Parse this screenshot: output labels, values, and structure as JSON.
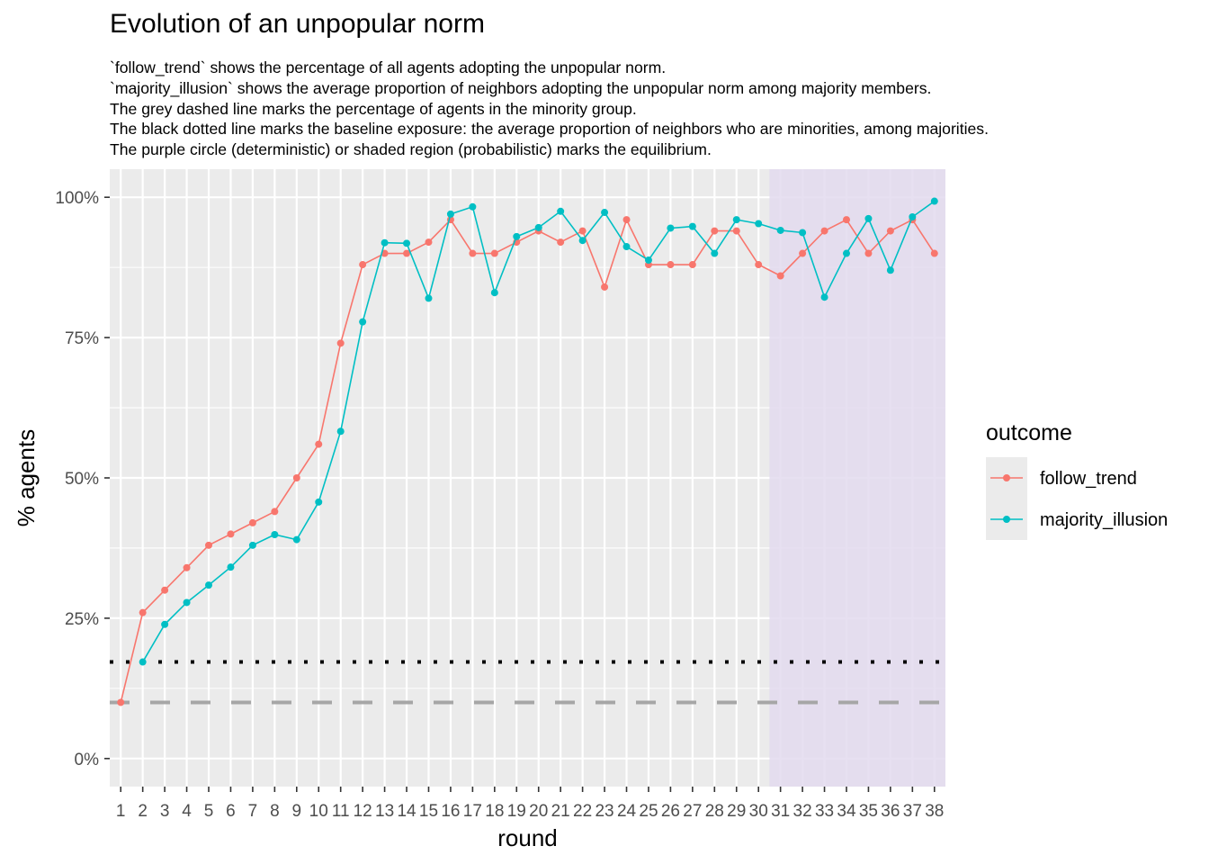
{
  "chart_data": {
    "type": "line",
    "title": "Evolution of an unpopular norm",
    "subtitle": [
      "`follow_trend` shows the percentage of all agents adopting the unpopular norm.",
      "`majority_illusion` shows the average proportion of neighbors adopting the unpopular norm among majority members.",
      "The grey dashed line marks the percentage of agents in the minority group.",
      "The black dotted line marks the baseline exposure: the average proportion of neighbors who are minorities, among majorities.",
      "The purple circle (deterministic) or shaded region (probabilistic) marks the equilibrium."
    ],
    "xlabel": "round",
    "ylabel": "% agents",
    "x": [
      1,
      2,
      3,
      4,
      5,
      6,
      7,
      8,
      9,
      10,
      11,
      12,
      13,
      14,
      15,
      16,
      17,
      18,
      19,
      20,
      21,
      22,
      23,
      24,
      25,
      26,
      27,
      28,
      29,
      30,
      31,
      32,
      33,
      34,
      35,
      36,
      37,
      38
    ],
    "xlim": [
      0.5,
      38.5
    ],
    "ylim": [
      -0.05,
      1.05
    ],
    "yticks": [
      0,
      0.25,
      0.5,
      0.75,
      1.0
    ],
    "ytick_labels": [
      "0%",
      "25%",
      "50%",
      "75%",
      "100%"
    ],
    "series": [
      {
        "name": "follow_trend",
        "color": "#F8766D",
        "values": [
          0.1,
          0.26,
          0.3,
          0.34,
          0.38,
          0.4,
          0.42,
          0.44,
          0.5,
          0.56,
          0.74,
          0.88,
          0.9,
          0.9,
          0.92,
          0.96,
          0.9,
          0.9,
          0.92,
          0.94,
          0.92,
          0.94,
          0.84,
          0.96,
          0.88,
          0.88,
          0.88,
          0.94,
          0.94,
          0.88,
          0.86,
          0.9,
          0.94,
          0.96,
          0.9,
          0.94,
          0.96,
          0.9
        ]
      },
      {
        "name": "majority_illusion",
        "color": "#00BFC4",
        "values": [
          null,
          0.172,
          0.239,
          0.278,
          0.309,
          0.341,
          0.38,
          0.399,
          0.39,
          0.457,
          0.583,
          0.778,
          0.919,
          0.918,
          0.82,
          0.97,
          0.983,
          0.83,
          0.93,
          0.946,
          0.975,
          0.923,
          0.973,
          0.912,
          0.888,
          0.945,
          0.948,
          0.9,
          0.96,
          0.953,
          0.941,
          0.937,
          0.822,
          0.9,
          0.962,
          0.87,
          0.965,
          0.993
        ]
      }
    ],
    "reference_lines": [
      {
        "style": "dotted",
        "color": "#000000",
        "value": 0.172
      },
      {
        "style": "dashed",
        "color": "#A6A6A6",
        "value": 0.1
      }
    ],
    "shaded_region": {
      "x_start": 30.5,
      "x_end": 38.5,
      "color": "#E3DBEE"
    },
    "grid": true,
    "legend": {
      "title": "outcome",
      "position": "right",
      "entries": [
        "follow_trend",
        "majority_illusion"
      ]
    }
  }
}
